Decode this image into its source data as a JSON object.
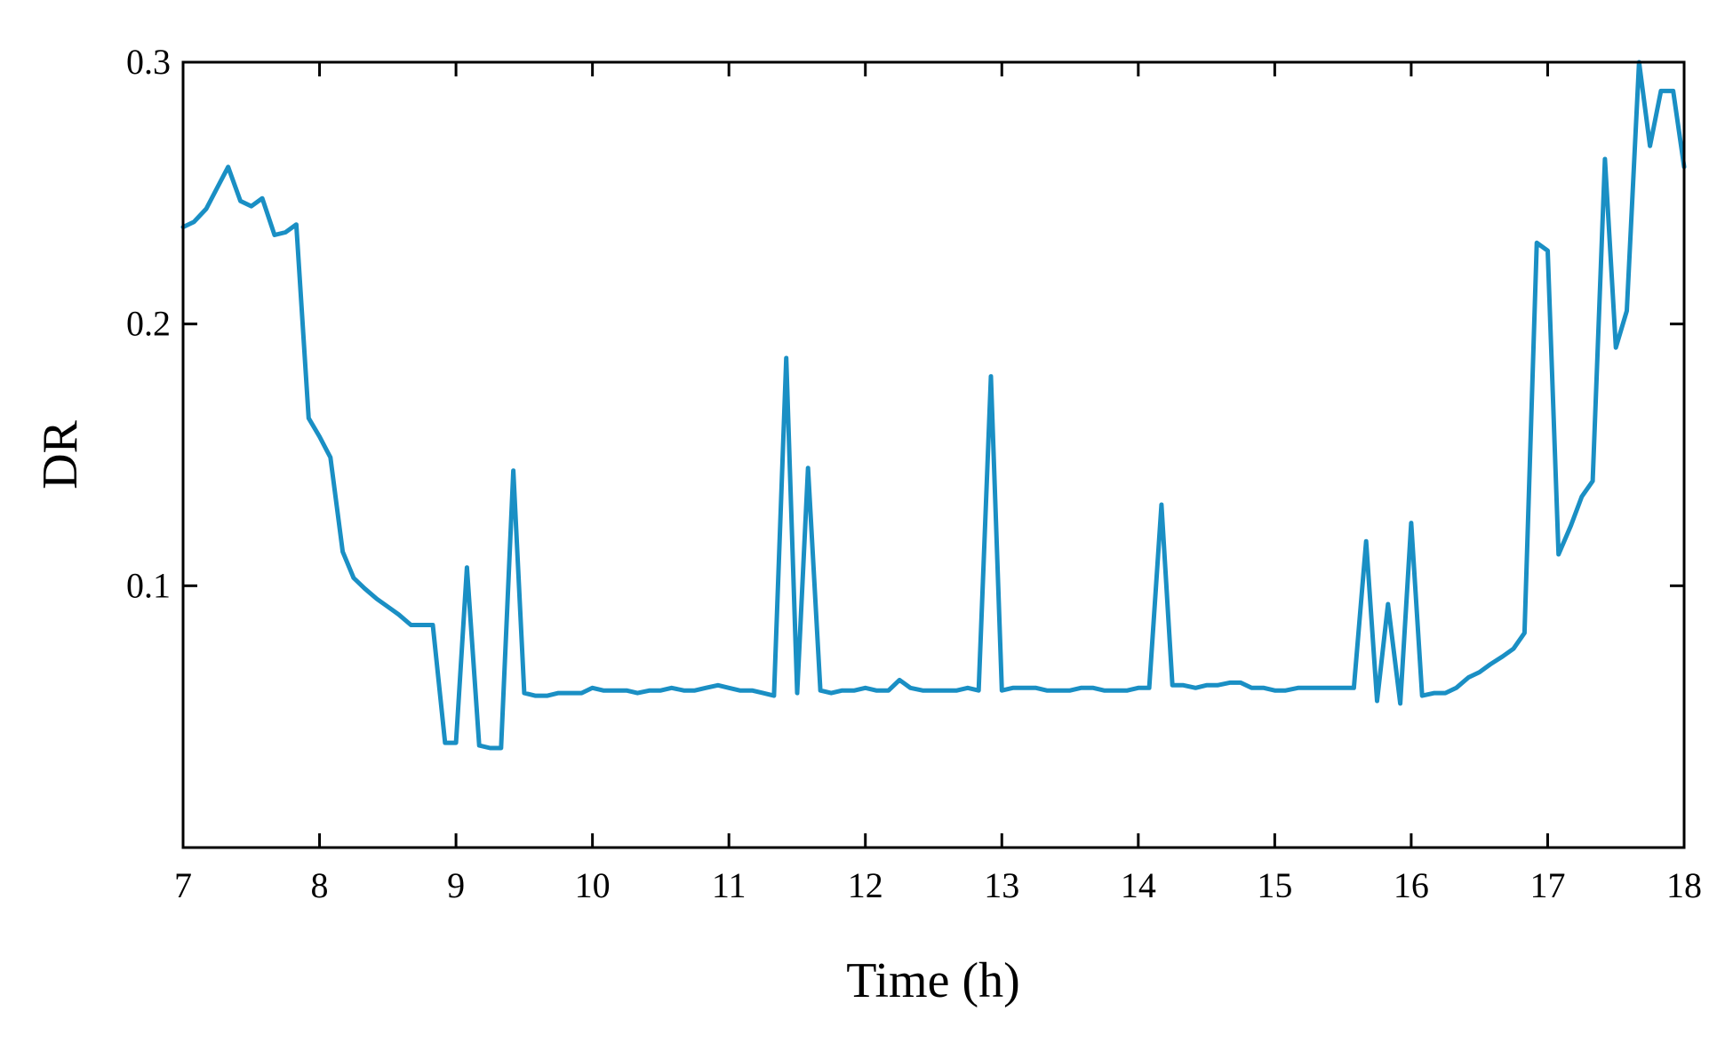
{
  "chart_data": {
    "type": "line",
    "title": "",
    "xlabel": "Time (h)",
    "ylabel": "DR",
    "xlim": [
      7,
      18
    ],
    "ylim": [
      0,
      0.3
    ],
    "x_ticks": [
      7,
      8,
      9,
      10,
      11,
      12,
      13,
      14,
      15,
      16,
      17,
      18
    ],
    "x_tick_labels": [
      "7",
      "8",
      "9",
      "10",
      "11",
      "12",
      "13",
      "14",
      "15",
      "16",
      "17",
      "18"
    ],
    "y_ticks": [
      0.1,
      0.2,
      0.3
    ],
    "y_tick_labels": [
      "0.1",
      "0.2",
      "0.3"
    ],
    "grid": false,
    "legend": "none",
    "color": "#1a8fc4",
    "series": [
      {
        "x": [
          7.0,
          7.08,
          7.17,
          7.25,
          7.33,
          7.42,
          7.5,
          7.58,
          7.67,
          7.75,
          7.83,
          7.92,
          8.0,
          8.08,
          8.17,
          8.25,
          8.33,
          8.42,
          8.5,
          8.58,
          8.67,
          8.75,
          8.83,
          8.92,
          9.0,
          9.08,
          9.17,
          9.25,
          9.33,
          9.42,
          9.5,
          9.58,
          9.67,
          9.75,
          9.83,
          9.92,
          10.0,
          10.08,
          10.17,
          10.25,
          10.33,
          10.42,
          10.5,
          10.58,
          10.67,
          10.75,
          10.83,
          10.92,
          11.0,
          11.08,
          11.17,
          11.25,
          11.33,
          11.42,
          11.5,
          11.58,
          11.67,
          11.75,
          11.83,
          11.92,
          12.0,
          12.08,
          12.17,
          12.25,
          12.33,
          12.42,
          12.5,
          12.58,
          12.67,
          12.75,
          12.83,
          12.92,
          13.0,
          13.08,
          13.17,
          13.25,
          13.33,
          13.42,
          13.5,
          13.58,
          13.67,
          13.75,
          13.83,
          13.92,
          14.0,
          14.08,
          14.17,
          14.25,
          14.33,
          14.42,
          14.5,
          14.58,
          14.67,
          14.75,
          14.83,
          14.92,
          15.0,
          15.08,
          15.17,
          15.25,
          15.33,
          15.42,
          15.5,
          15.58,
          15.67,
          15.75,
          15.83,
          15.92,
          16.0,
          16.08,
          16.17,
          16.25,
          16.33,
          16.42,
          16.5,
          16.58,
          16.67,
          16.75,
          16.83,
          16.92,
          17.0,
          17.08,
          17.17,
          17.25,
          17.33,
          17.42,
          17.5,
          17.58,
          17.67,
          17.75,
          17.83,
          17.92,
          18.0
        ],
        "y": [
          0.237,
          0.239,
          0.244,
          0.252,
          0.26,
          0.247,
          0.245,
          0.248,
          0.234,
          0.235,
          0.238,
          0.164,
          0.157,
          0.149,
          0.113,
          0.103,
          0.099,
          0.095,
          0.092,
          0.089,
          0.085,
          0.085,
          0.085,
          0.04,
          0.04,
          0.107,
          0.039,
          0.038,
          0.038,
          0.144,
          0.059,
          0.058,
          0.058,
          0.059,
          0.059,
          0.059,
          0.061,
          0.06,
          0.06,
          0.06,
          0.059,
          0.06,
          0.06,
          0.061,
          0.06,
          0.06,
          0.061,
          0.062,
          0.061,
          0.06,
          0.06,
          0.059,
          0.058,
          0.187,
          0.059,
          0.145,
          0.06,
          0.059,
          0.06,
          0.06,
          0.061,
          0.06,
          0.06,
          0.064,
          0.061,
          0.06,
          0.06,
          0.06,
          0.06,
          0.061,
          0.06,
          0.18,
          0.06,
          0.061,
          0.061,
          0.061,
          0.06,
          0.06,
          0.06,
          0.061,
          0.061,
          0.06,
          0.06,
          0.06,
          0.061,
          0.061,
          0.131,
          0.062,
          0.062,
          0.061,
          0.062,
          0.062,
          0.063,
          0.063,
          0.061,
          0.061,
          0.06,
          0.06,
          0.061,
          0.061,
          0.061,
          0.061,
          0.061,
          0.061,
          0.117,
          0.056,
          0.093,
          0.055,
          0.124,
          0.058,
          0.059,
          0.059,
          0.061,
          0.065,
          0.067,
          0.07,
          0.073,
          0.076,
          0.082,
          0.231,
          0.228,
          0.112,
          0.123,
          0.134,
          0.14,
          0.263,
          0.191,
          0.205,
          0.3,
          0.268,
          0.289,
          0.289,
          0.26
        ]
      }
    ]
  }
}
